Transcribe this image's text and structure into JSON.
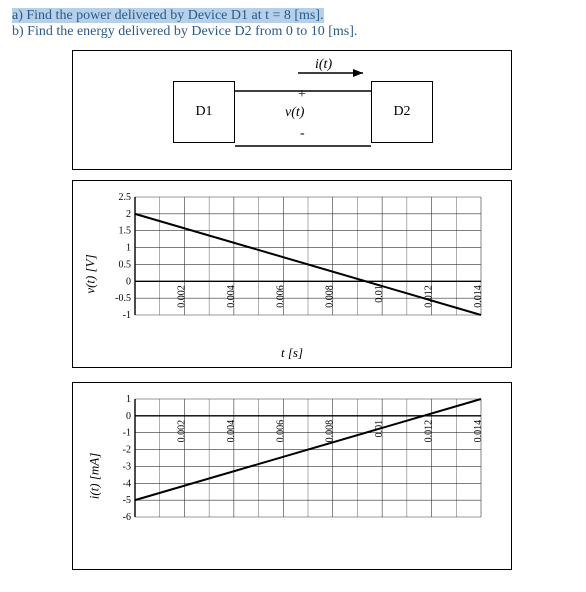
{
  "questions": {
    "a": "a) Find the power delivered by Device D1 at t = 8 [ms].",
    "b": "b) Find the energy delivered by Device D2 from 0 to 10 [ms]."
  },
  "circuit": {
    "i_label": "i(t)",
    "v_label": "v(t)",
    "plus": "+",
    "minus": "-",
    "d1": "D1",
    "d2": "D2"
  },
  "chart_v": {
    "type": "line",
    "ylabel": "v(t) [V]",
    "xlabel": "t [s]",
    "xlim": [
      0,
      0.014
    ],
    "ylim": [
      -1,
      2.5
    ],
    "xticks": [
      0.002,
      0.004,
      0.006,
      0.008,
      0.01,
      0.012,
      0.014
    ],
    "yticks": [
      -1,
      -0.5,
      0,
      0.5,
      1,
      1.5,
      2,
      2.5
    ],
    "grid_color": "#333333",
    "line_color": "#000000",
    "line_width": 2,
    "background_color": "#ffffff",
    "data": {
      "x": [
        0,
        0.014
      ],
      "y": [
        2,
        -1
      ]
    }
  },
  "chart_i": {
    "type": "line",
    "ylabel": "i(t) [mA]",
    "xlabel": "",
    "xlim": [
      0,
      0.014
    ],
    "ylim": [
      -6,
      1
    ],
    "xticks": [
      0.002,
      0.004,
      0.006,
      0.008,
      0.01,
      0.012,
      0.014
    ],
    "yticks": [
      -6,
      -5,
      -4,
      -3,
      -2,
      -1,
      0,
      1
    ],
    "grid_color": "#333333",
    "line_color": "#000000",
    "line_width": 2,
    "background_color": "#ffffff",
    "data": {
      "x": [
        0,
        0.014
      ],
      "y": [
        -5,
        1
      ]
    }
  }
}
